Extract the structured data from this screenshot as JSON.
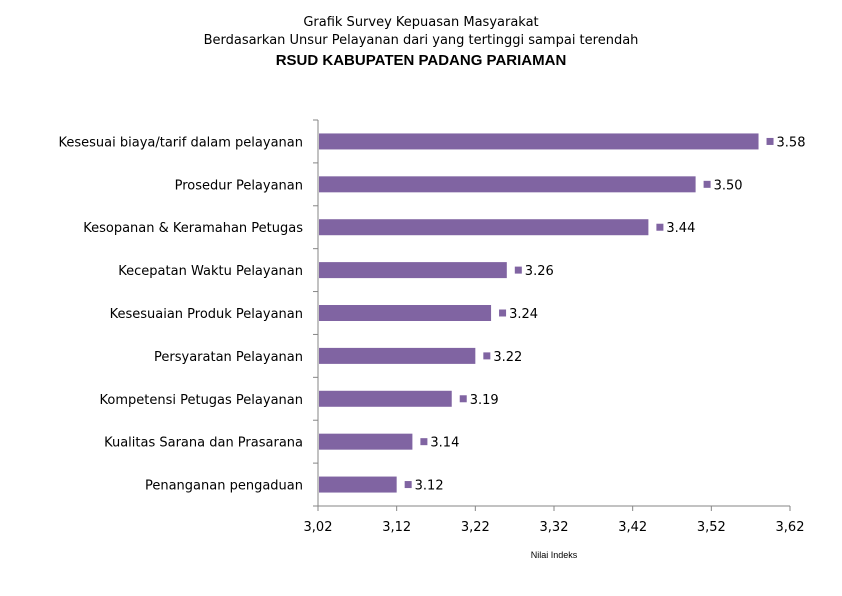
{
  "title": {
    "line1": "Grafik  Survey Kepuasan Masyarakat",
    "line2": "Berdasarkan Unsur Pelayanan dari yang tertinggi sampai terendah",
    "line3": "RSUD KABUPATEN PADANG PARIAMAN"
  },
  "chart_data": {
    "type": "bar",
    "orientation": "horizontal",
    "categories": [
      "Kesesuai biaya/tarif dalam pelayanan",
      "Prosedur Pelayanan",
      "Kesopanan & Keramahan Petugas",
      "Kecepatan Waktu Pelayanan",
      "Kesesuaian Produk Pelayanan",
      "Persyaratan Pelayanan",
      "Kompetensi Petugas Pelayanan",
      "Kualitas Sarana dan Prasarana",
      "Penanganan pengaduan"
    ],
    "values": [
      3.58,
      3.5,
      3.44,
      3.26,
      3.24,
      3.22,
      3.19,
      3.14,
      3.12
    ],
    "value_labels": [
      "3.58",
      "3.50",
      "3.44",
      "3.26",
      "3.24",
      "3.22",
      "3.19",
      "3.14",
      "3.12"
    ],
    "xlabel": "Nilai Indeks",
    "xlim": [
      3.02,
      3.62
    ],
    "xticks": [
      "3,02",
      "3,12",
      "3,22",
      "3,32",
      "3,42",
      "3,52",
      "3,62"
    ],
    "bar_color": "#8064a2",
    "grid": false,
    "legend": "none"
  }
}
